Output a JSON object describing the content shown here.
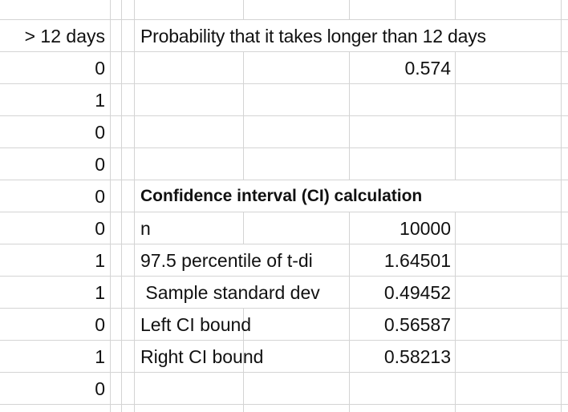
{
  "column_a": {
    "header": "> 12 days",
    "values": [
      "0",
      "1",
      "0",
      "0",
      "0",
      "0",
      "1",
      "1",
      "0",
      "1",
      "0"
    ]
  },
  "probability_block": {
    "label": "Probability that it takes longer than 12 days",
    "value": "0.574"
  },
  "ci_block": {
    "title": "Confidence interval (CI) calculation",
    "rows": [
      {
        "label": "n",
        "value": "10000"
      },
      {
        "label": "97.5 percentile of t-di",
        "value": "1.64501"
      },
      {
        "label": " Sample standard dev",
        "value": "0.49452"
      },
      {
        "label": "Left CI bound",
        "value": "0.56587"
      },
      {
        "label": "Right CI bound",
        "value": "0.58213"
      }
    ]
  }
}
